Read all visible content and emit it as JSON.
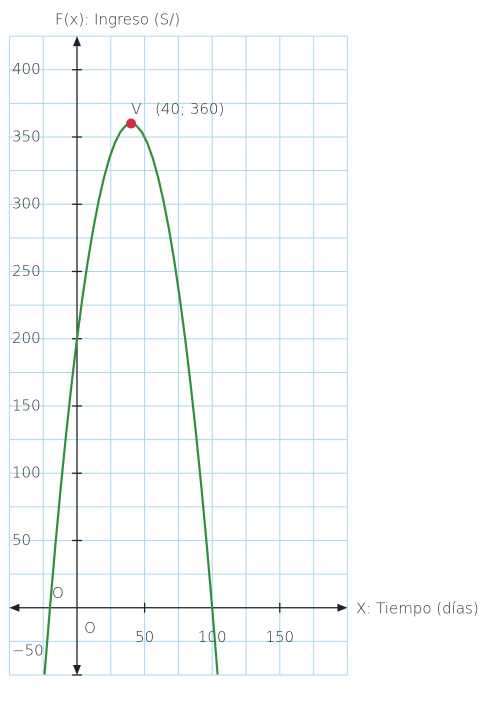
{
  "chart_data": {
    "type": "line",
    "title": "F(x): Ingreso (S/)",
    "xlabel": "X: Tiempo (días)",
    "x": [
      -24,
      -20,
      -16,
      -12,
      -8,
      -4,
      0,
      4,
      8,
      12,
      16,
      20,
      24,
      28,
      32,
      36,
      40,
      44,
      48,
      52,
      56,
      60,
      64,
      68,
      72,
      76,
      80,
      84,
      88,
      92,
      96,
      100,
      104
    ],
    "series": [
      {
        "name": "F(x)",
        "color": "#2f8f3c",
        "values": [
          -49.6,
          0,
          46.4,
          89.6,
          129.6,
          166.4,
          200,
          230.4,
          257.6,
          281.6,
          302.4,
          320,
          334.4,
          345.6,
          353.6,
          358.4,
          360,
          358.4,
          353.6,
          345.6,
          334.4,
          320,
          302.4,
          281.6,
          257.6,
          230.4,
          200,
          166.4,
          129.6,
          89.6,
          46.4,
          0,
          -49.6
        ]
      }
    ],
    "point": {
      "label": "V",
      "annotation": "(40; 360)",
      "x": 40,
      "y": 360,
      "color": "#d42b45"
    },
    "origin_labels": [
      "O",
      "O"
    ],
    "xlim": [
      -50,
      200
    ],
    "ylim": [
      -50,
      425
    ],
    "xticks": [
      50,
      100,
      150
    ],
    "yticks": [
      {
        "value": -50,
        "label": "−50"
      },
      50,
      100,
      150,
      200,
      250,
      300,
      350,
      400
    ],
    "xgrid": [
      -50,
      -25,
      0,
      25,
      50,
      75,
      100,
      125,
      150,
      175,
      200
    ],
    "ygrid": [
      -50,
      -25,
      0,
      25,
      50,
      75,
      100,
      125,
      150,
      175,
      200,
      225,
      250,
      275,
      300,
      325,
      350,
      375,
      400,
      425
    ],
    "grid": true
  }
}
